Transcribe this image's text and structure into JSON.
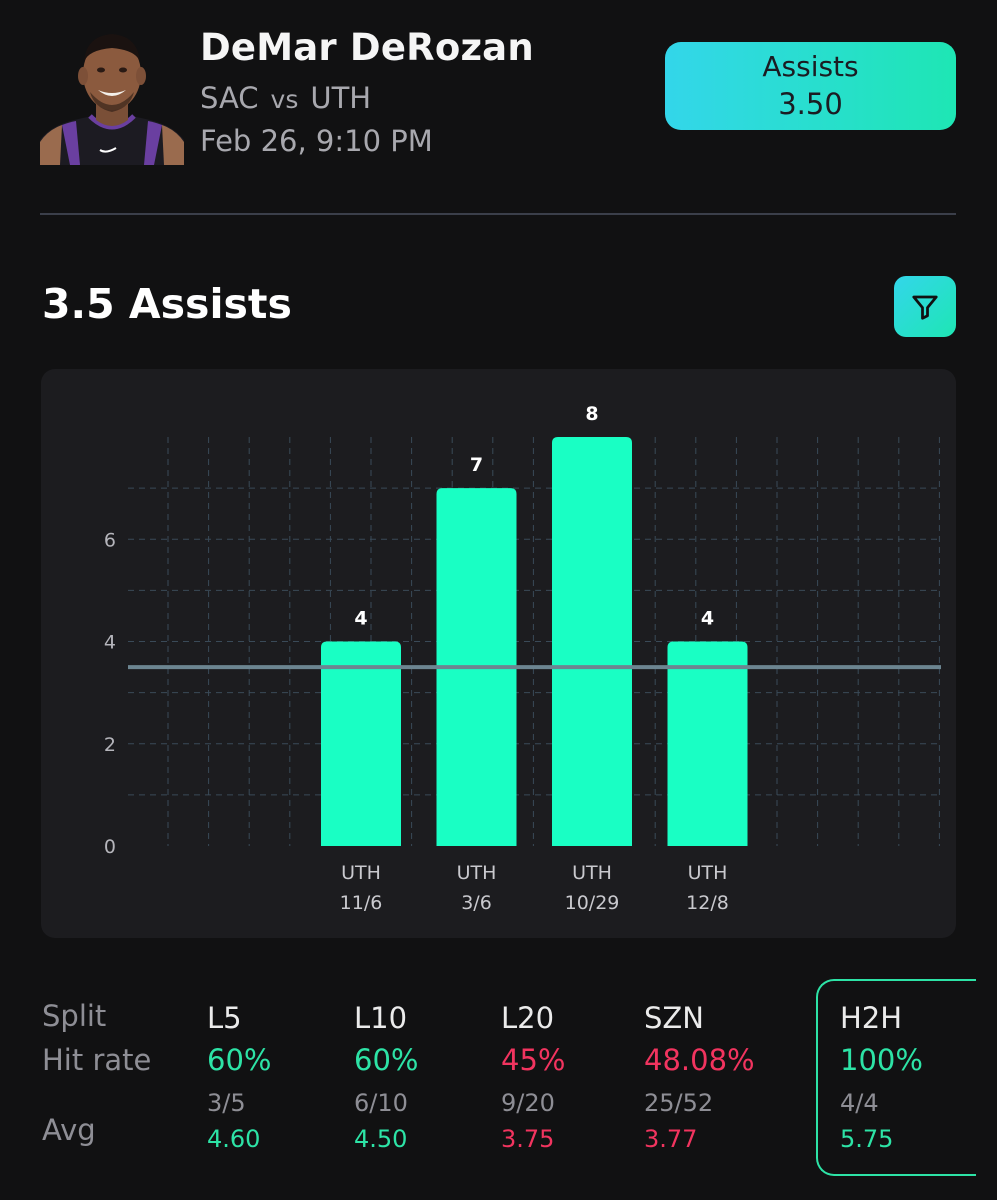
{
  "player": {
    "name": "DeMar DeRozan",
    "team": "SAC",
    "vs": "vs",
    "opponent": "UTH",
    "game_time": "Feb 26, 9:10 PM"
  },
  "prop": {
    "stat": "Assists",
    "line": "3.50"
  },
  "section": {
    "title": "3.5 Assists",
    "filter_icon": "filter-icon"
  },
  "chart_data": {
    "type": "bar",
    "categories": [
      "UTH 11/6",
      "UTH 3/6",
      "UTH 10/29",
      "UTH 12/8"
    ],
    "category_lines": [
      [
        "UTH",
        "11/6"
      ],
      [
        "UTH",
        "3/6"
      ],
      [
        "UTH",
        "10/29"
      ],
      [
        "UTH",
        "12/8"
      ]
    ],
    "values": [
      4,
      7,
      8,
      4
    ],
    "threshold": 3.5,
    "ylim": [
      0,
      8
    ],
    "yticks": [
      0,
      2,
      4,
      6
    ],
    "grid": true,
    "bar_color": "#19ffc4",
    "threshold_color": "#6c8591"
  },
  "stats": {
    "row_labels": {
      "split": "Split",
      "hit_rate": "Hit rate",
      "avg": "Avg"
    },
    "columns": [
      {
        "split": "L5",
        "hit_rate": "60%",
        "fraction": "3/5",
        "avg": "4.60",
        "status": "green"
      },
      {
        "split": "L10",
        "hit_rate": "60%",
        "fraction": "6/10",
        "avg": "4.50",
        "status": "green"
      },
      {
        "split": "L20",
        "hit_rate": "45%",
        "fraction": "9/20",
        "avg": "3.75",
        "status": "red"
      },
      {
        "split": "SZN",
        "hit_rate": "48.08%",
        "fraction": "25/52",
        "avg": "3.77",
        "status": "red"
      },
      {
        "split": "H2H",
        "hit_rate": "100%",
        "fraction": "4/4",
        "avg": "5.75",
        "status": "green",
        "selected": true
      }
    ]
  },
  "colors": {
    "accent_green": "#2de3a6",
    "accent_red": "#f2345f",
    "gradient_start": "#33d6ea",
    "gradient_end": "#1ee6b4"
  }
}
